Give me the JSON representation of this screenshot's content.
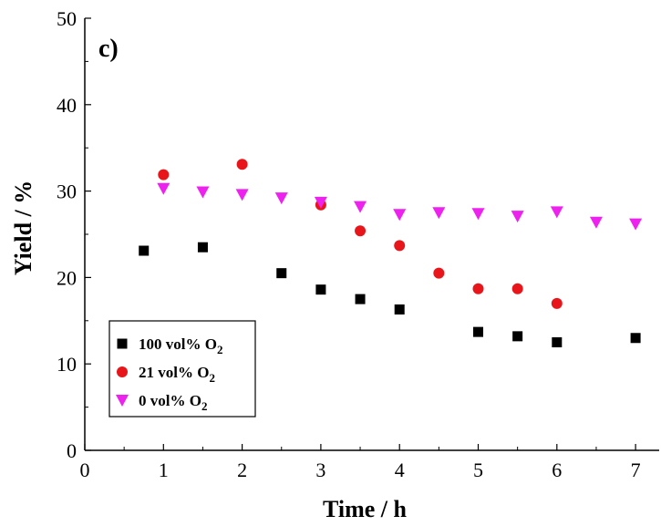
{
  "chart_data": {
    "type": "scatter",
    "panel_label": "c)",
    "xlabel": "Time / h",
    "ylabel": "Yield / %",
    "xlim": [
      0,
      7.3
    ],
    "ylim": [
      0,
      50
    ],
    "xticks": [
      0,
      1,
      2,
      3,
      4,
      5,
      6,
      7
    ],
    "yticks": [
      0,
      10,
      20,
      30,
      40,
      50
    ],
    "grid": false,
    "legend_position": "bottom-left",
    "series": [
      {
        "name": "100 vol% O2",
        "label_main": "100 vol% O",
        "label_sub": "2",
        "marker": "square",
        "color": "#000000",
        "x": [
          0.75,
          1.5,
          2.5,
          3.0,
          3.5,
          4.0,
          5.0,
          5.5,
          6.0,
          7.0
        ],
        "y": [
          23.1,
          23.5,
          20.5,
          18.6,
          17.5,
          16.3,
          13.7,
          13.2,
          12.5,
          13.0
        ]
      },
      {
        "name": "21 vol% O2",
        "label_main": "21 vol% O",
        "label_sub": "2",
        "marker": "circle",
        "color": "#e8161b",
        "x": [
          1.0,
          2.0,
          3.0,
          3.5,
          4.0,
          4.5,
          5.0,
          5.5,
          6.0
        ],
        "y": [
          31.9,
          33.1,
          28.4,
          25.4,
          23.7,
          20.5,
          18.7,
          18.7,
          17.0
        ]
      },
      {
        "name": "0 vol% O2",
        "label_main": "0 vol% O",
        "label_sub": "2",
        "marker": "triangle-down",
        "color": "#ee22ee",
        "x": [
          1.0,
          1.5,
          2.0,
          2.5,
          3.0,
          3.5,
          4.0,
          4.5,
          5.0,
          5.5,
          6.0,
          6.5,
          7.0
        ],
        "y": [
          30.3,
          29.9,
          29.6,
          29.2,
          28.7,
          28.2,
          27.3,
          27.5,
          27.4,
          27.1,
          27.6,
          26.4,
          26.2
        ]
      }
    ]
  }
}
